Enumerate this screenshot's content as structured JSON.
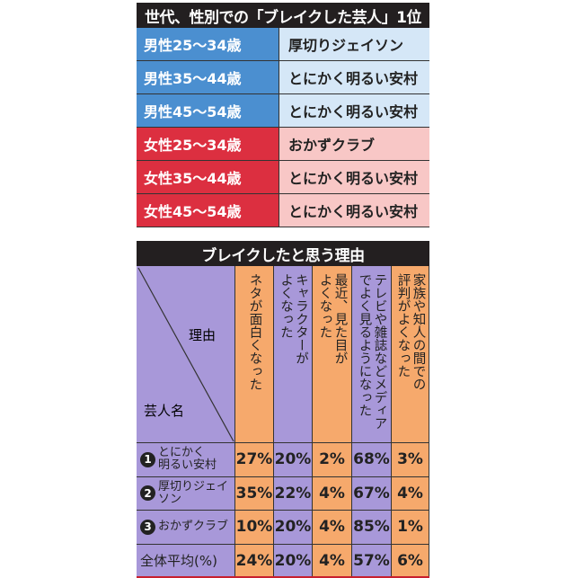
{
  "table1": {
    "title": "世代、性別での「ブレイクした芸人」1位",
    "rows": [
      {
        "group": "男性25～34歳",
        "name": "厚切りジェイソン",
        "gender": "male"
      },
      {
        "group": "男性35～44歳",
        "name": "とにかく明るい安村",
        "gender": "male"
      },
      {
        "group": "男性45～54歳",
        "name": "とにかく明るい安村",
        "gender": "male"
      },
      {
        "group": "女性25～34歳",
        "name": "おかずクラブ",
        "gender": "female"
      },
      {
        "group": "女性35～44歳",
        "name": "とにかく明るい安村",
        "gender": "female"
      },
      {
        "group": "女性45～54歳",
        "name": "とにかく明るい安村",
        "gender": "female"
      }
    ]
  },
  "table2": {
    "title": "ブレイクしたと思う理由",
    "corner_top": "理由",
    "corner_bottom": "芸人名",
    "columns": [
      "ネタが面白くなった",
      "キャラクターが\nよくなった",
      "最近、見た目が\nよくなった",
      "テレビや雑誌などメディア\nでよく見るようになった",
      "家族や知人の間での\n評判がよくなった"
    ],
    "rows": [
      {
        "rank": "1",
        "name": "とにかく\n明るい安村",
        "values": [
          "27%",
          "20%",
          "2%",
          "68%",
          "3%"
        ]
      },
      {
        "rank": "2",
        "name": "厚切りジェイソン",
        "values": [
          "35%",
          "22%",
          "4%",
          "67%",
          "4%"
        ]
      },
      {
        "rank": "3",
        "name": "おかずクラブ",
        "values": [
          "10%",
          "20%",
          "4%",
          "85%",
          "1%"
        ]
      },
      {
        "rank": "",
        "name": "全体平均(%)",
        "values": [
          "24%",
          "20%",
          "4%",
          "57%",
          "6%"
        ]
      }
    ]
  },
  "colors": {
    "male": "#4b8fd0",
    "male_light": "#d5e7f7",
    "female": "#dc2f40",
    "female_light": "#f8c7c6",
    "purple": "#a898d9",
    "orange": "#f6a96c"
  }
}
